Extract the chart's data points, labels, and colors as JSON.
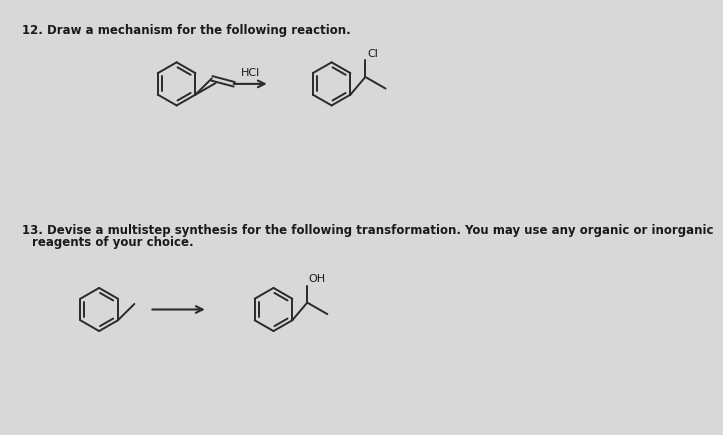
{
  "bg_color": "#d8d8d8",
  "title12": "12. Draw a mechanism for the following reaction.",
  "title13": "13. Devise a multistep synthesis for the following transformation. You may use any organic or inorganic",
  "title13b": "reagents of your choice.",
  "reagent12": "HCl",
  "label_Cl": "Cl",
  "label_OH": "OH",
  "text_color": "#1a1a1a",
  "line_color": "#2a2a2a",
  "line_width": 1.4
}
